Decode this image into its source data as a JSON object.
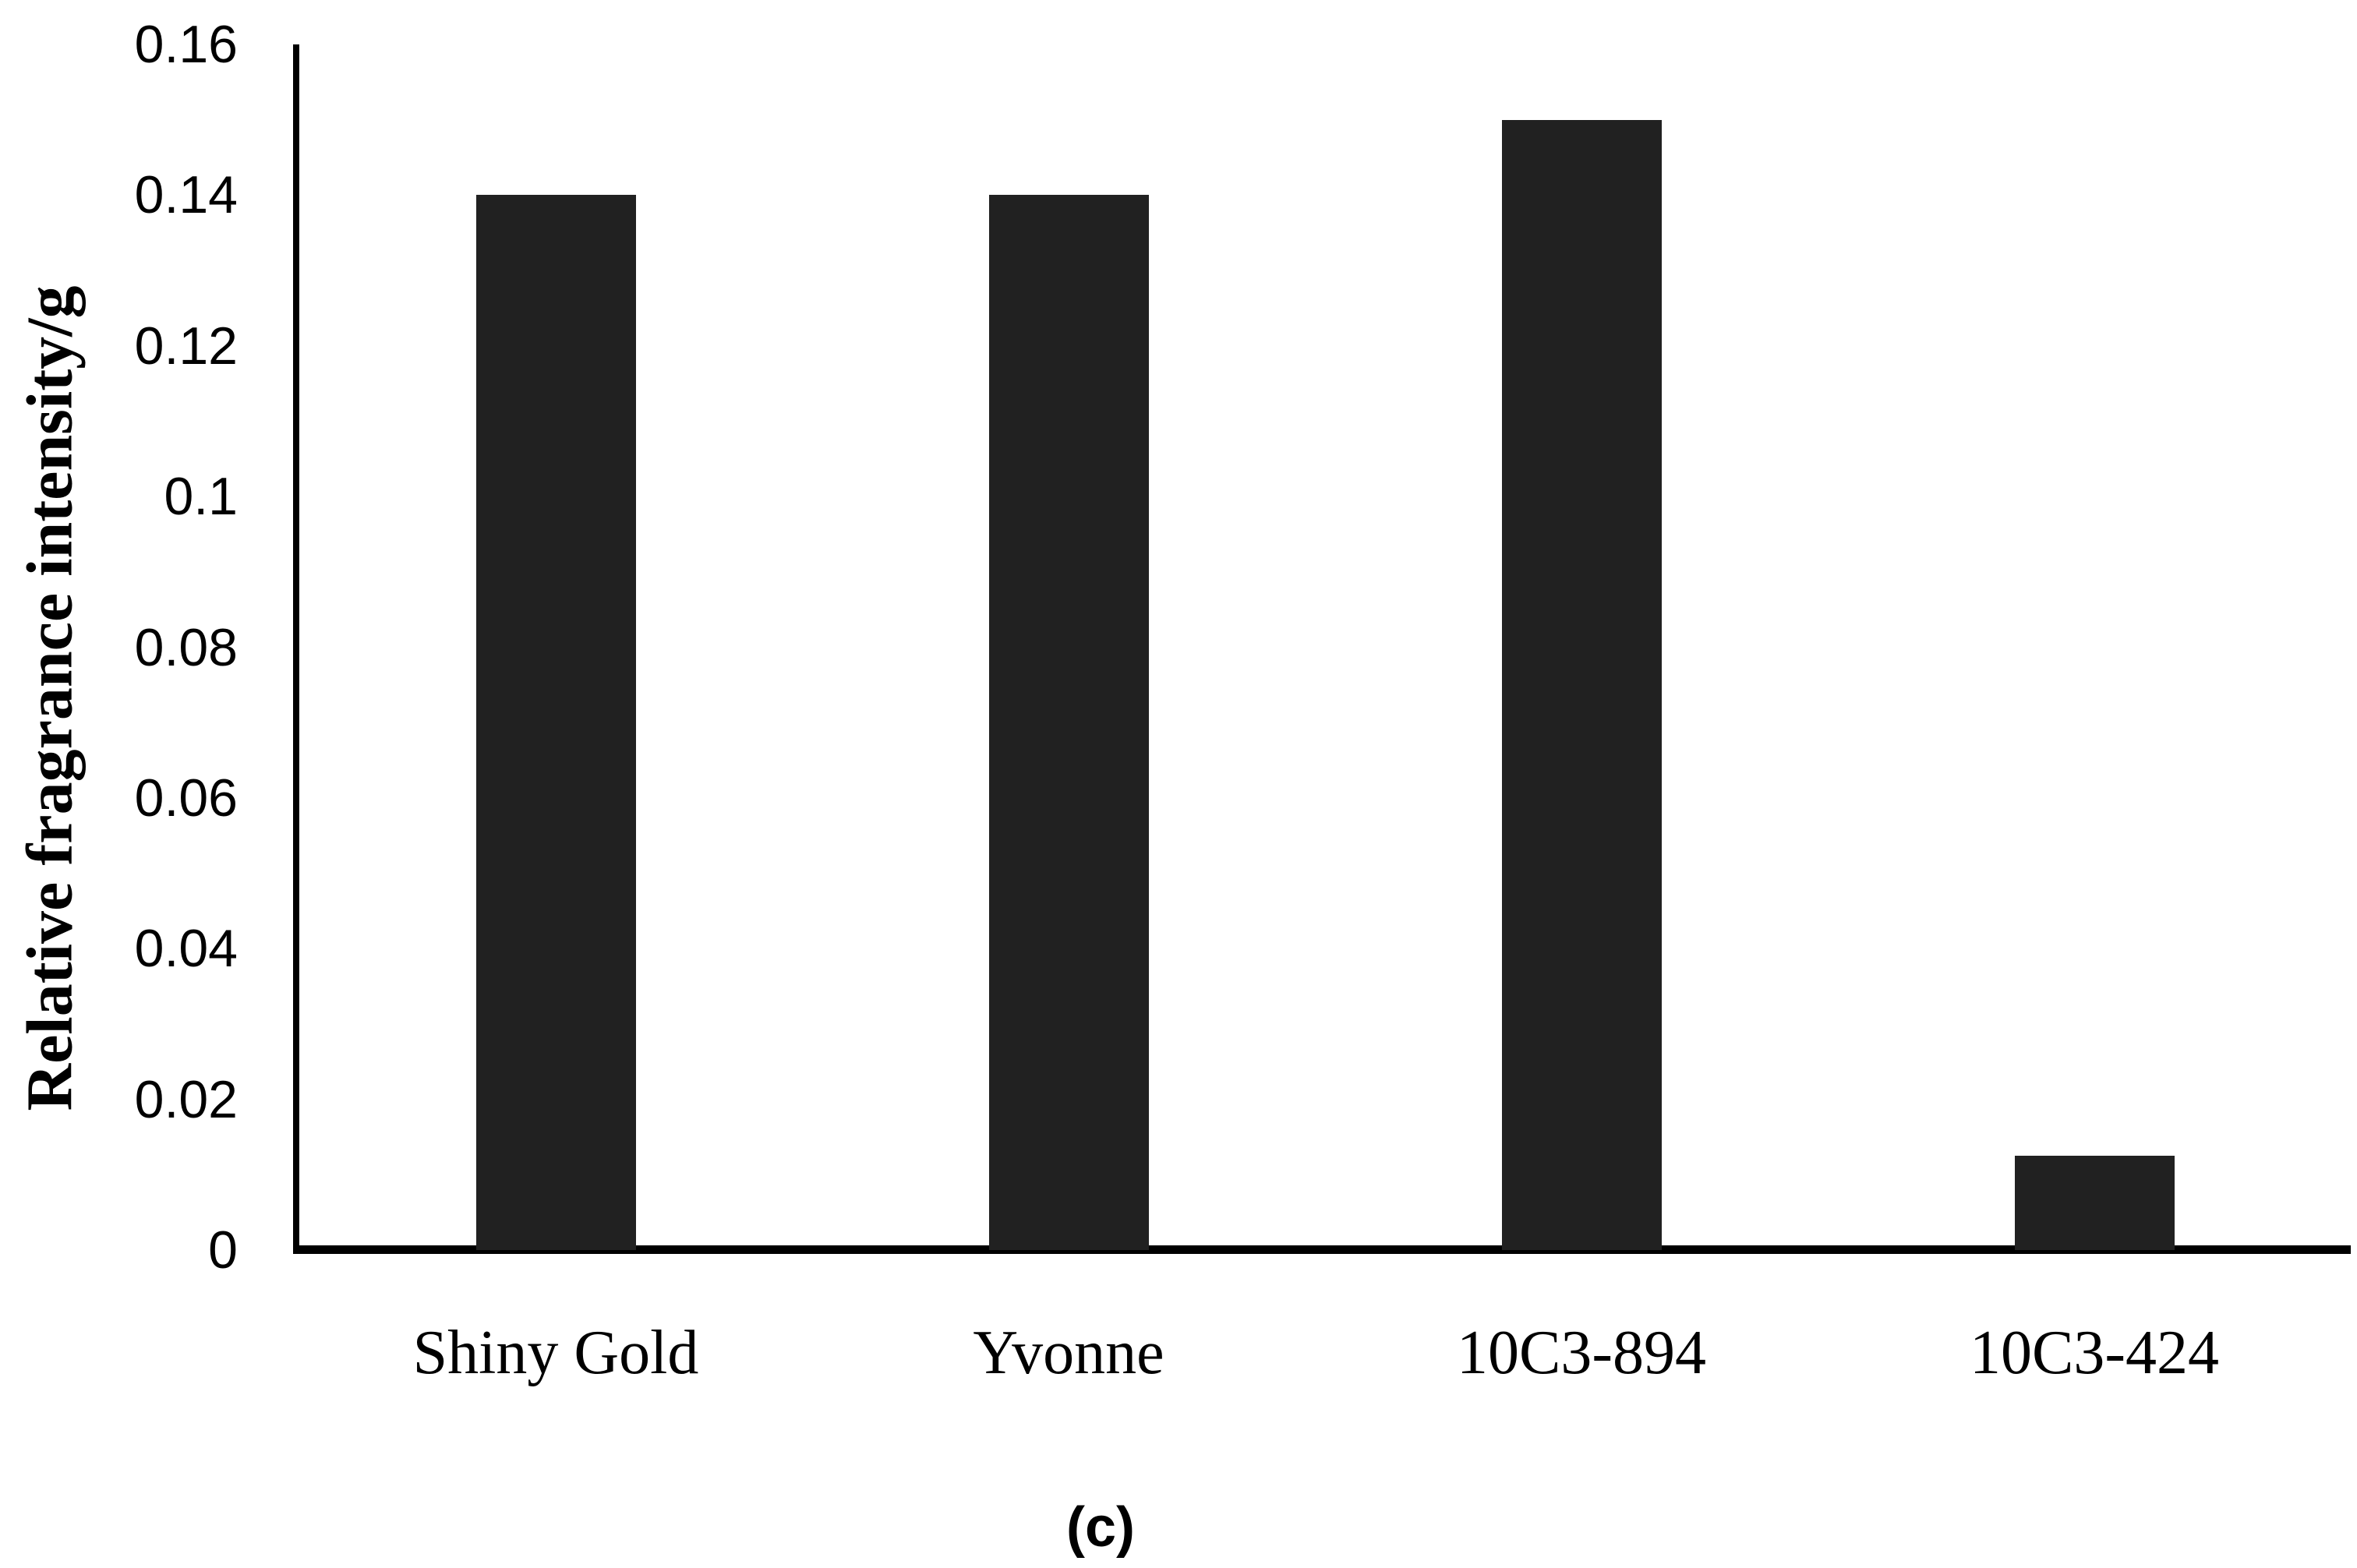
{
  "chart_data": {
    "type": "bar",
    "title": "",
    "categories": [
      "Shiny Gold",
      "Yvonne",
      "10C3-894",
      "10C3-424"
    ],
    "values": [
      0.14,
      0.14,
      0.15,
      0.0125
    ],
    "xlabel": "",
    "ylabel": "Relative fragrance intensity/g",
    "ylim": [
      0,
      0.16
    ],
    "ytick_step": 0.02,
    "ytick_labels": [
      "0",
      "0.02",
      "0.04",
      "0.06",
      "0.08",
      "0.1",
      "0.12",
      "0.14",
      "0.16"
    ],
    "grid": false,
    "legend_position": "none",
    "bar_color": "#212121",
    "axis_color": "#000000",
    "background_color": "#ffffff"
  },
  "caption": "(c)"
}
